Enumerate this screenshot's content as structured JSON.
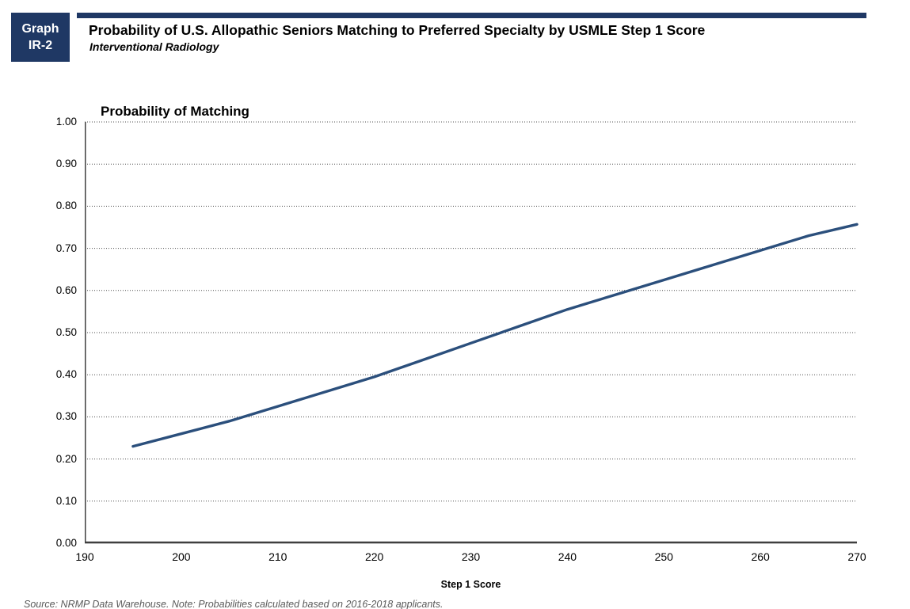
{
  "header": {
    "graph_label_line1": "Graph",
    "graph_label_line2": "IR-2",
    "title": "Probability of U.S. Allopathic Seniors Matching to Preferred Specialty by USMLE Step 1 Score",
    "subtitle": "Interventional Radiology",
    "accent_color": "#1F3864"
  },
  "chart_data": {
    "type": "line",
    "title": "Probability of Matching",
    "xlabel": "Step 1 Score",
    "ylabel": "Probability of Matching",
    "xlim": [
      190,
      270
    ],
    "ylim": [
      0,
      1
    ],
    "xticks": [
      190,
      200,
      210,
      220,
      230,
      240,
      250,
      260,
      270
    ],
    "yticks": [
      "1.00",
      "0.90",
      "0.80",
      "0.70",
      "0.60",
      "0.50",
      "0.40",
      "0.30",
      "0.20",
      "0.10",
      "0.00"
    ],
    "grid": "horizontal-dotted",
    "legend": "none",
    "line_color": "#2B4F7C",
    "series": [
      {
        "name": "Probability of Matching",
        "x": [
          195,
          200,
          205,
          210,
          215,
          220,
          225,
          230,
          235,
          240,
          245,
          250,
          255,
          260,
          265,
          270
        ],
        "y": [
          0.23,
          0.26,
          0.29,
          0.325,
          0.36,
          0.395,
          0.435,
          0.475,
          0.515,
          0.555,
          0.59,
          0.625,
          0.66,
          0.695,
          0.73,
          0.757
        ]
      }
    ]
  },
  "footer": {
    "note": "Source: NRMP Data Warehouse. Note: Probabilities calculated based on 2016-2018 applicants."
  }
}
